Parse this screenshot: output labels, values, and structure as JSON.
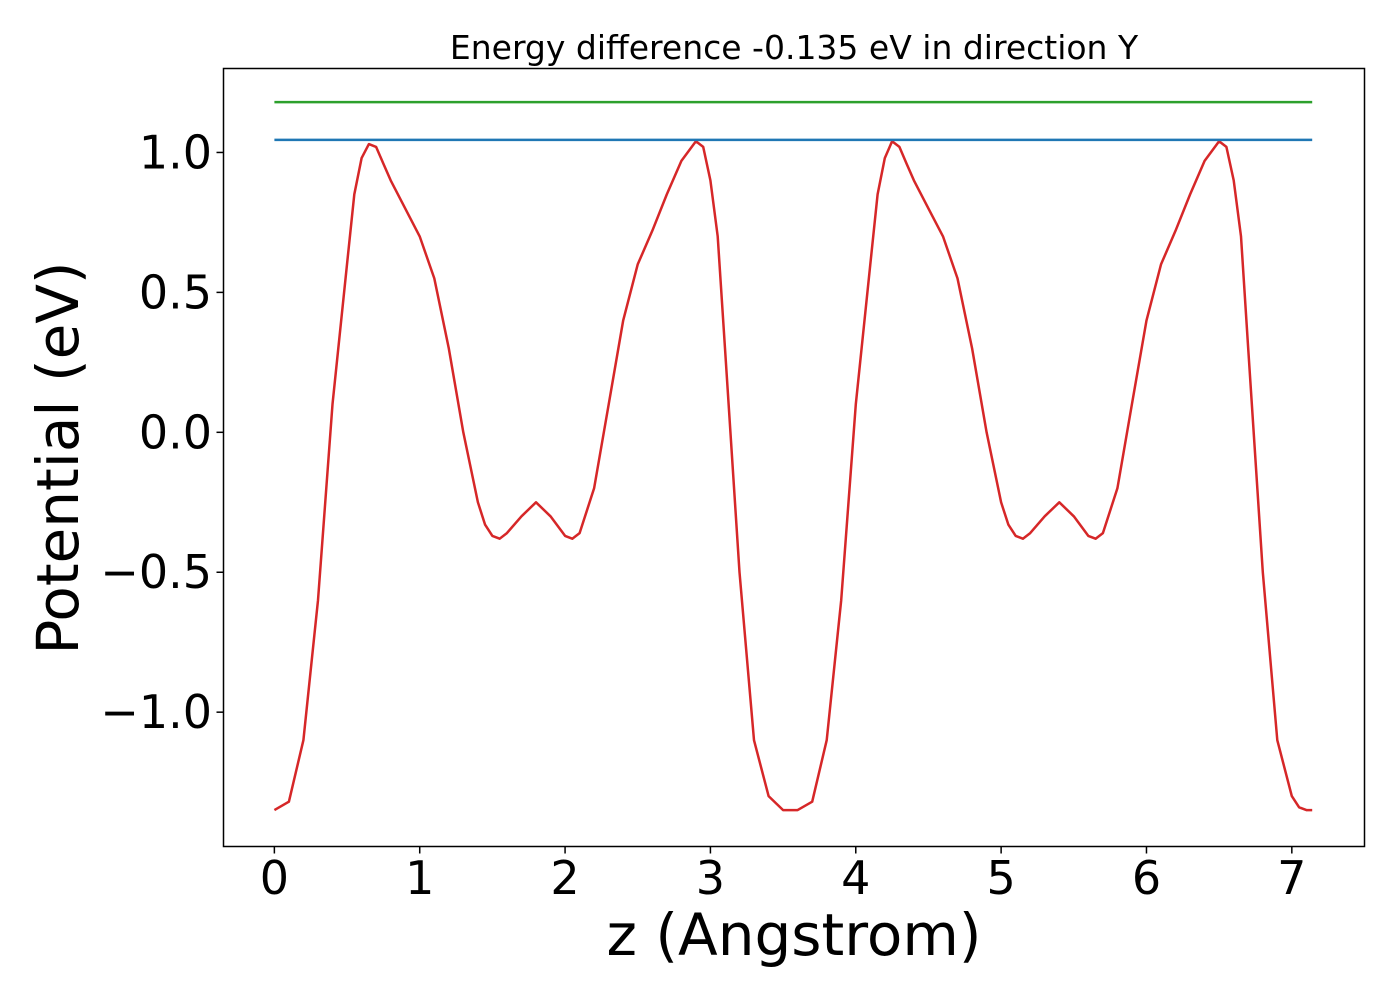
{
  "chart_data": {
    "type": "line",
    "title": "Energy difference -0.135 eV in direction Y",
    "xlabel": "z (Angstrom)",
    "ylabel": "Potential (eV)",
    "xlim": [
      -0.35,
      7.5
    ],
    "ylim": [
      -1.48,
      1.3
    ],
    "grid": false,
    "legend": "none",
    "x_ticks": [
      0,
      1,
      2,
      3,
      4,
      5,
      6,
      7
    ],
    "x_tick_labels": [
      "0",
      "1",
      "2",
      "3",
      "4",
      "5",
      "6",
      "7"
    ],
    "y_ticks": [
      -1.0,
      -0.5,
      0.0,
      0.5,
      1.0
    ],
    "y_tick_labels": [
      "−1.0",
      "−0.5",
      "0.0",
      "0.5",
      "1.0"
    ],
    "series": [
      {
        "color": "#d62728",
        "x": [
          0.0,
          0.1,
          0.2,
          0.3,
          0.4,
          0.5,
          0.55,
          0.6,
          0.65,
          0.7,
          0.75,
          0.8,
          0.9,
          1.0,
          1.1,
          1.2,
          1.3,
          1.4,
          1.45,
          1.5,
          1.55,
          1.6,
          1.7,
          1.8,
          1.9,
          2.0,
          2.05,
          2.1,
          2.2,
          2.3,
          2.4,
          2.5,
          2.6,
          2.7,
          2.8,
          2.9,
          2.95,
          3.0,
          3.05,
          3.1,
          3.2,
          3.3,
          3.4,
          3.5,
          3.6,
          3.7,
          3.8,
          3.9,
          4.0,
          4.1,
          4.15,
          4.2,
          4.25,
          4.3,
          4.35,
          4.4,
          4.5,
          4.6,
          4.7,
          4.8,
          4.9,
          5.0,
          5.05,
          5.1,
          5.15,
          5.2,
          5.3,
          5.4,
          5.5,
          5.6,
          5.65,
          5.7,
          5.8,
          5.9,
          6.0,
          6.1,
          6.2,
          6.3,
          6.4,
          6.5,
          6.55,
          6.6,
          6.65,
          6.7,
          6.8,
          6.9,
          7.0,
          7.05,
          7.1,
          7.14
        ],
        "y": [
          -1.35,
          -1.32,
          -1.1,
          -0.6,
          0.1,
          0.6,
          0.85,
          0.98,
          1.03,
          1.02,
          0.96,
          0.9,
          0.8,
          0.7,
          0.55,
          0.3,
          0.0,
          -0.25,
          -0.33,
          -0.37,
          -0.38,
          -0.36,
          -0.3,
          -0.25,
          -0.3,
          -0.37,
          -0.38,
          -0.36,
          -0.2,
          0.1,
          0.4,
          0.6,
          0.72,
          0.85,
          0.97,
          1.04,
          1.02,
          0.9,
          0.7,
          0.3,
          -0.5,
          -1.1,
          -1.3,
          -1.35,
          -1.35,
          -1.32,
          -1.1,
          -0.6,
          0.1,
          0.6,
          0.85,
          0.98,
          1.04,
          1.02,
          0.96,
          0.9,
          0.8,
          0.7,
          0.55,
          0.3,
          0.0,
          -0.25,
          -0.33,
          -0.37,
          -0.38,
          -0.36,
          -0.3,
          -0.25,
          -0.3,
          -0.37,
          -0.38,
          -0.36,
          -0.2,
          0.1,
          0.4,
          0.6,
          0.72,
          0.85,
          0.97,
          1.04,
          1.02,
          0.9,
          0.7,
          0.3,
          -0.5,
          -1.1,
          -1.3,
          -1.34,
          -1.35,
          -1.35
        ]
      },
      {
        "color": "#1f77b4",
        "x": [
          0.0,
          7.14
        ],
        "y": [
          1.045,
          1.045
        ]
      },
      {
        "color": "#2ca02c",
        "x": [
          0.0,
          7.14
        ],
        "y": [
          1.18,
          1.18
        ]
      }
    ]
  }
}
